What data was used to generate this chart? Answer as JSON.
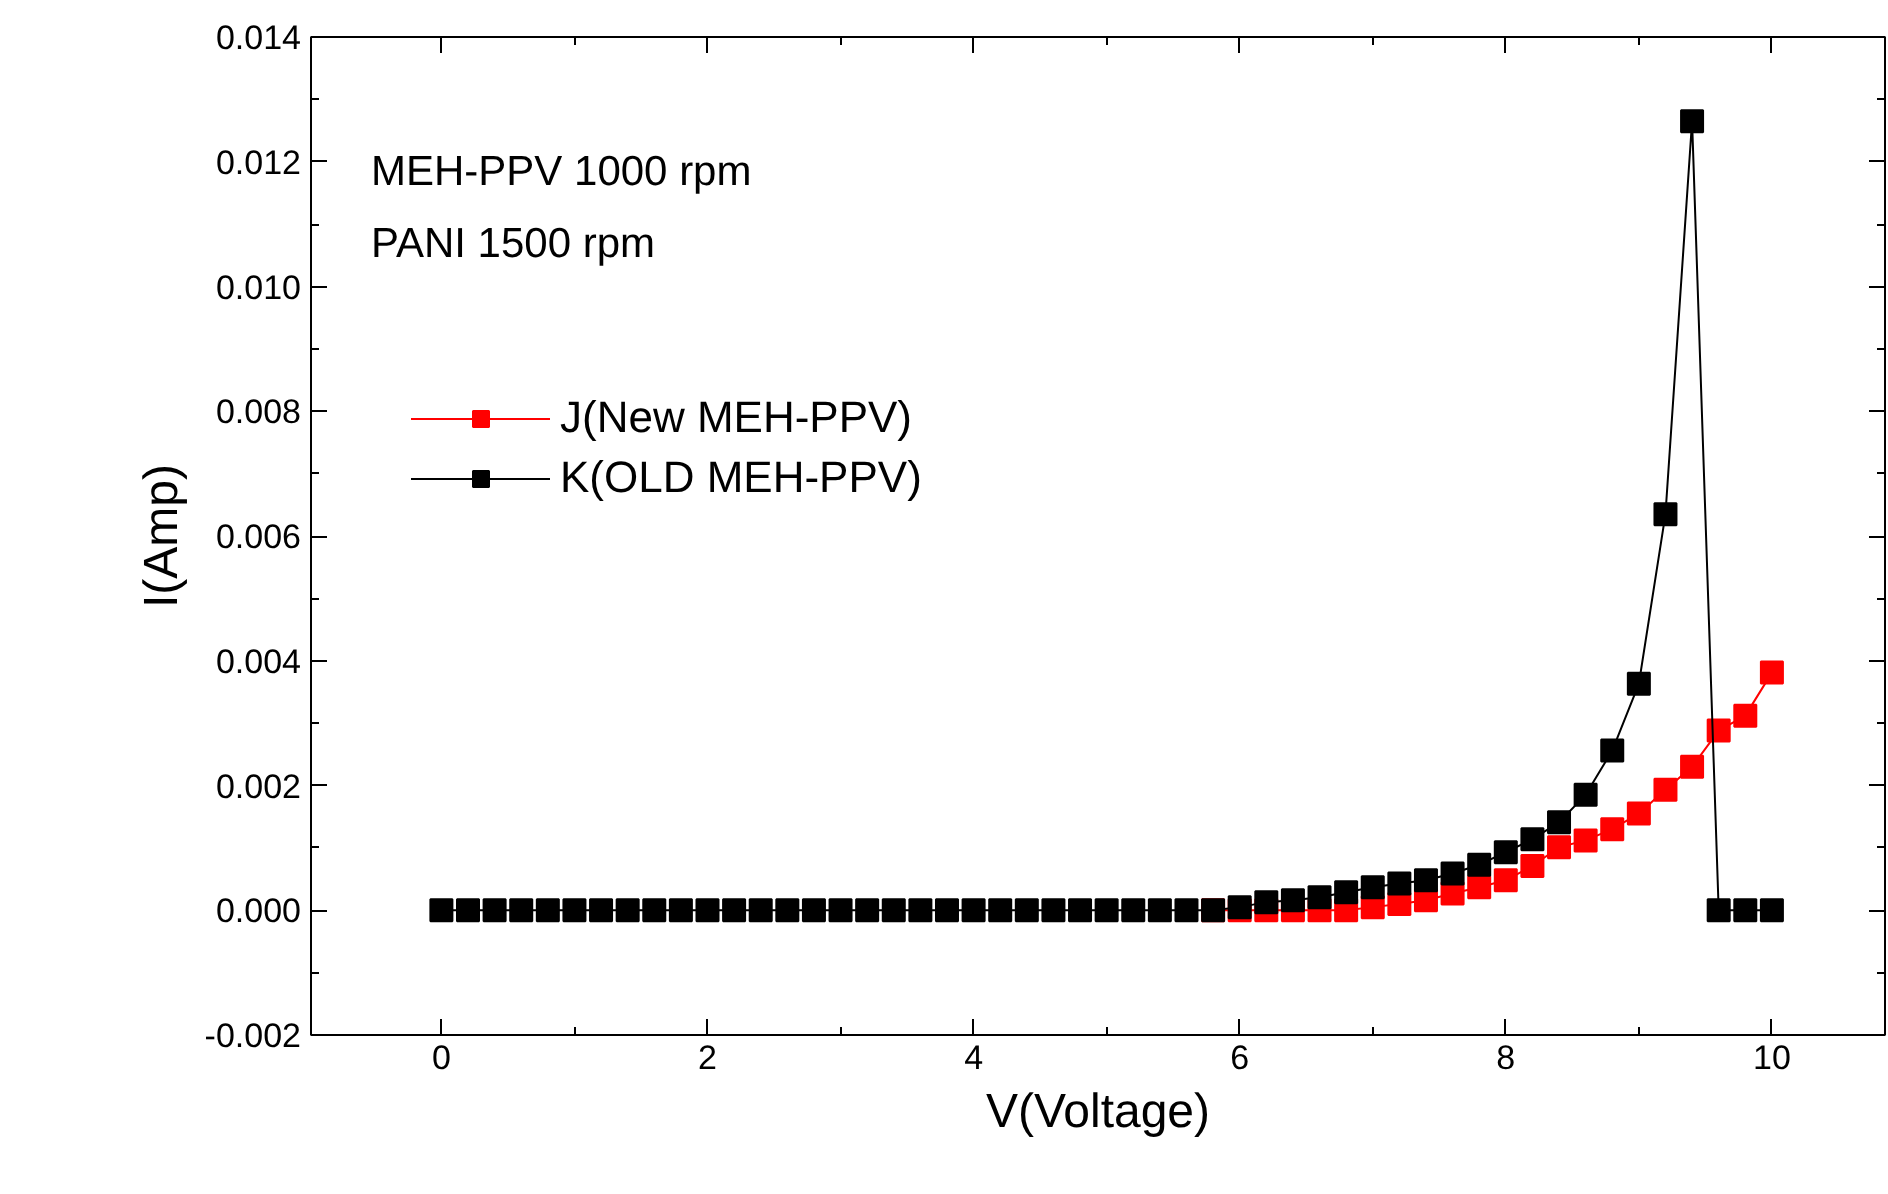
{
  "chart_data": {
    "type": "line",
    "xlabel": "V(Voltage)",
    "ylabel": "I(Amp)",
    "annotations": [
      "MEH-PPV 1000 rpm",
      "PANI 1500  rpm"
    ],
    "x": [
      0,
      0.2,
      0.4,
      0.6,
      0.8,
      1,
      1.2,
      1.4,
      1.6,
      1.8,
      2,
      2.2,
      2.4,
      2.6,
      2.8,
      3,
      3.2,
      3.4,
      3.6,
      3.8,
      4,
      4.2,
      4.4,
      4.6,
      4.8,
      5,
      5.2,
      5.4,
      5.6,
      5.8,
      6,
      6.2,
      6.4,
      6.6,
      6.8,
      7,
      7.2,
      7.4,
      7.6,
      7.8,
      8,
      8.2,
      8.4,
      8.6,
      8.8,
      9,
      9.2,
      9.4,
      9.6,
      9.8,
      10
    ],
    "series": [
      {
        "name": "J(New MEH-PPV)",
        "color": "#ff0000",
        "values": [
          null,
          null,
          null,
          null,
          null,
          null,
          null,
          null,
          null,
          null,
          null,
          null,
          null,
          null,
          null,
          null,
          null,
          null,
          null,
          null,
          null,
          null,
          null,
          null,
          null,
          null,
          null,
          null,
          null,
          0,
          0,
          0,
          0,
          0,
          0,
          5e-05,
          0.0001,
          0.00016,
          0.00027,
          0.00037,
          0.00048,
          0.00071,
          0.00101,
          0.00112,
          0.0013,
          0.00155,
          0.00193,
          0.0023,
          0.00288,
          0.00312,
          0.00381
        ]
      },
      {
        "name": "K(OLD MEH-PPV)",
        "color": "#000000",
        "values": [
          0,
          0,
          0,
          0,
          0,
          0,
          0,
          0,
          0,
          0,
          0,
          0,
          0,
          0,
          0,
          0,
          0,
          0,
          0,
          0,
          0,
          0,
          0,
          0,
          0,
          0,
          0,
          0,
          0,
          0,
          5e-05,
          0.00013,
          0.00016,
          0.00021,
          0.00029,
          0.00037,
          0.00043,
          0.00048,
          0.00059,
          0.00073,
          0.00093,
          0.00114,
          0.00141,
          0.00185,
          0.00256,
          0.00363,
          0.00635,
          0.01265,
          0,
          0,
          0
        ]
      }
    ],
    "xlim": [
      -0.98,
      10.85
    ],
    "xticks": [
      0,
      2,
      4,
      6,
      8,
      10
    ],
    "ylim": [
      -0.002,
      0.014
    ],
    "yticks": [
      {
        "value": -0.002,
        "label": "-0.002"
      },
      {
        "value": 0,
        "label": "0.000"
      },
      {
        "value": 0.002,
        "label": "0.002"
      },
      {
        "value": 0.004,
        "label": "0.004"
      },
      {
        "value": 0.006,
        "label": "0.006"
      },
      {
        "value": 0.008,
        "label": "0.008"
      },
      {
        "value": 0.01,
        "label": "0.010"
      },
      {
        "value": 0.012,
        "label": "0.012"
      },
      {
        "value": 0.014,
        "label": "0.014"
      }
    ],
    "marker": "square",
    "line_style": "solid",
    "grid": false,
    "legend": "top left"
  }
}
